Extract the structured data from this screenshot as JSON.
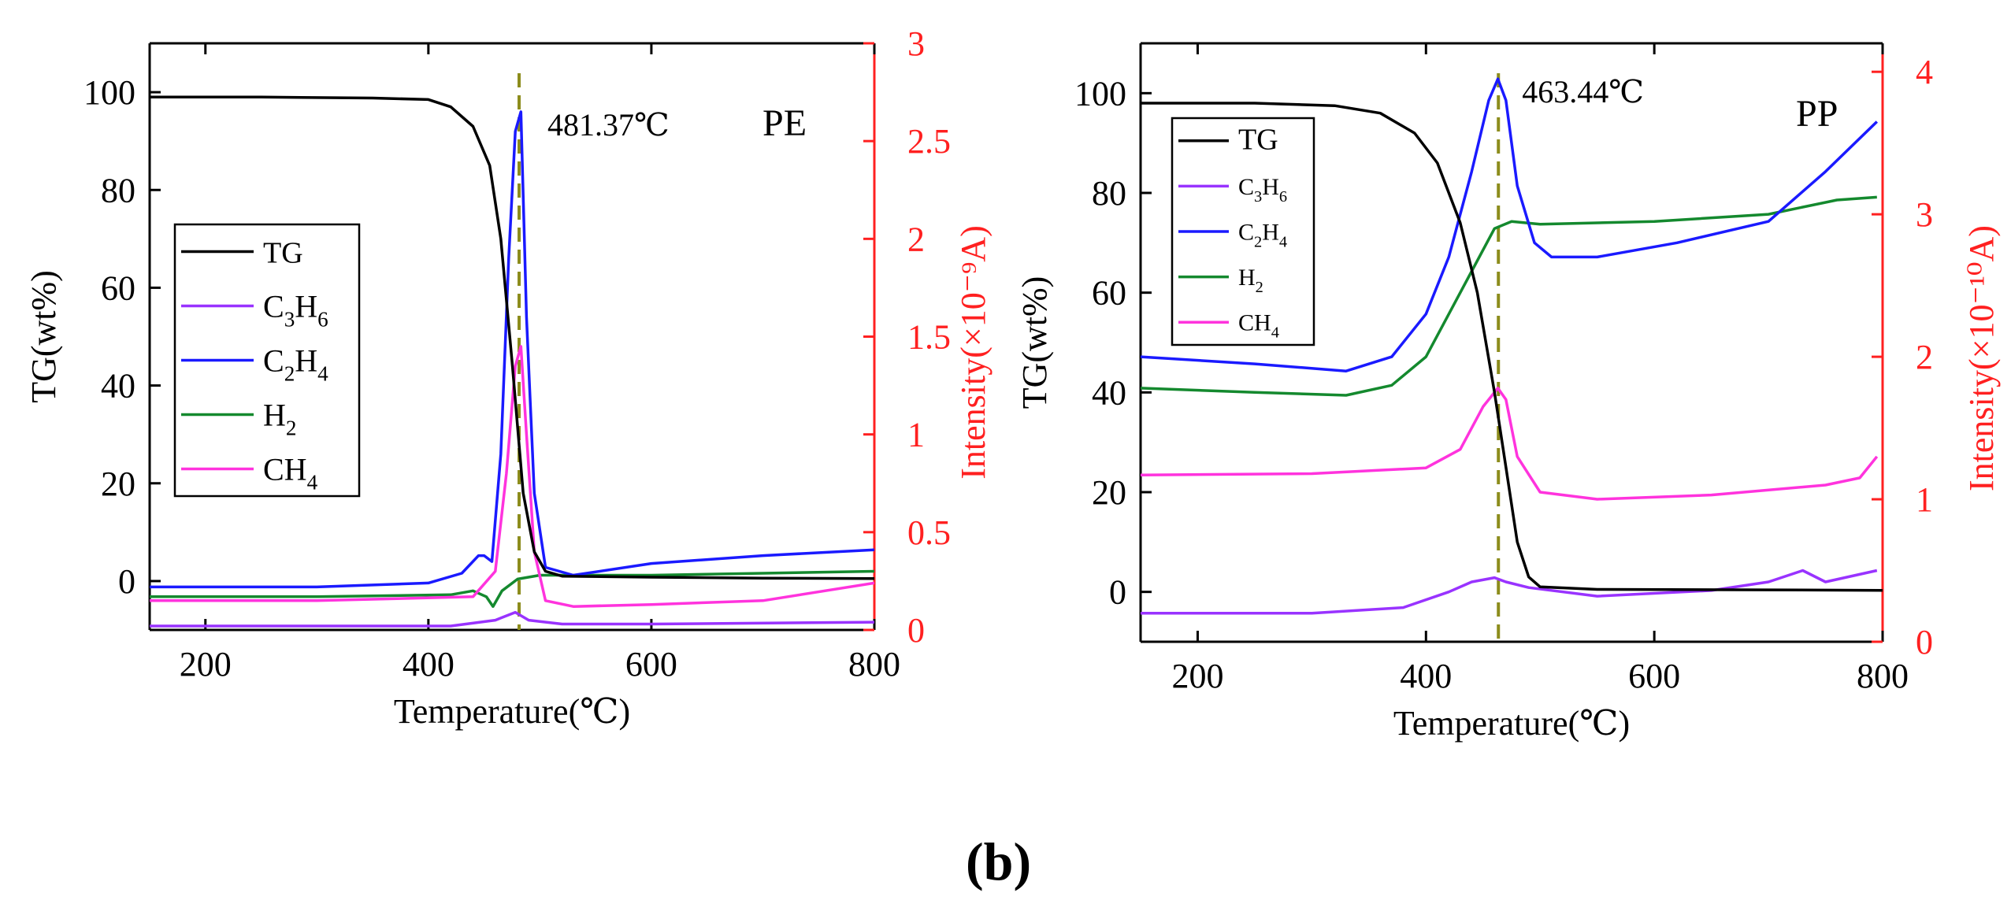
{
  "figure_label": "(b)",
  "colors": {
    "TG": "#000000",
    "C3H6": "#9933ff",
    "C2H4": "#1a1aff",
    "H2": "#14892e",
    "CH4": "#ff33dd",
    "marker": "#8c8c1c",
    "right_axis": "#ff2020"
  },
  "chart_data": [
    {
      "type": "line",
      "panel_label": "PE",
      "annotation": "481.37℃",
      "marker_x": 481.37,
      "xlabel": "Temperature(℃)",
      "ylabel": "TG(wt%)",
      "ylabel_right": "Intensity(×10⁻⁹A)",
      "xlim": [
        150,
        800
      ],
      "ylim": [
        -10,
        110
      ],
      "ylim_right": [
        0,
        3
      ],
      "xticks": [
        "200",
        "400",
        "600",
        "800"
      ],
      "yticks": [
        "0",
        "20",
        "40",
        "60",
        "80",
        "100"
      ],
      "yticks_right": [
        "0",
        "0.5",
        "1",
        "1.5",
        "2",
        "2.5",
        "3"
      ],
      "legend": [
        {
          "key": "TG",
          "label": "TG"
        },
        {
          "key": "C3H6",
          "label": "C3H6",
          "base": "C",
          "s1": "3",
          "mid": "H",
          "s2": "6"
        },
        {
          "key": "C2H4",
          "label": "C2H4",
          "base": "C",
          "s1": "2",
          "mid": "H",
          "s2": "4"
        },
        {
          "key": "H2",
          "label": "H2",
          "base": "H",
          "s1": "2"
        },
        {
          "key": "CH4",
          "label": "CH4",
          "base": "CH",
          "s1": "4"
        }
      ],
      "series": [
        {
          "key": "TG",
          "name": "TG",
          "axis": "left",
          "x": [
            150,
            250,
            350,
            400,
            420,
            440,
            455,
            465,
            475,
            485,
            495,
            505,
            520,
            600,
            700,
            800
          ],
          "y": [
            99,
            99,
            98.8,
            98.5,
            97,
            93,
            85,
            70,
            45,
            18,
            6,
            2,
            1,
            0.8,
            0.6,
            0.5
          ]
        },
        {
          "key": "C2H4",
          "name": "C2H4",
          "axis": "right",
          "x": [
            150,
            300,
            400,
            430,
            445,
            450,
            457,
            465,
            472,
            478,
            483,
            488,
            495,
            505,
            530,
            600,
            700,
            800
          ],
          "y": [
            0.22,
            0.22,
            0.24,
            0.29,
            0.38,
            0.38,
            0.35,
            0.9,
            1.9,
            2.55,
            2.65,
            1.6,
            0.7,
            0.32,
            0.28,
            0.34,
            0.38,
            0.41
          ]
        },
        {
          "key": "H2",
          "name": "H2",
          "axis": "right",
          "x": [
            150,
            300,
            420,
            440,
            452,
            458,
            466,
            480,
            500,
            600,
            700,
            800
          ],
          "y": [
            0.17,
            0.17,
            0.18,
            0.2,
            0.17,
            0.12,
            0.2,
            0.26,
            0.28,
            0.28,
            0.29,
            0.3
          ]
        },
        {
          "key": "CH4",
          "name": "CH4",
          "axis": "right",
          "x": [
            150,
            300,
            440,
            460,
            470,
            478,
            483,
            488,
            495,
            505,
            530,
            600,
            700,
            800
          ],
          "y": [
            0.15,
            0.15,
            0.17,
            0.3,
            0.8,
            1.35,
            1.45,
            1.0,
            0.4,
            0.15,
            0.12,
            0.13,
            0.15,
            0.24
          ]
        },
        {
          "key": "C3H6",
          "name": "C3H6",
          "axis": "right",
          "x": [
            150,
            420,
            460,
            478,
            490,
            520,
            600,
            800
          ],
          "y": [
            0.02,
            0.02,
            0.05,
            0.09,
            0.05,
            0.03,
            0.03,
            0.04
          ]
        }
      ]
    },
    {
      "type": "line",
      "panel_label": "PP",
      "annotation": "463.44℃",
      "marker_x": 463.44,
      "xlabel": "Temperature(℃)",
      "ylabel": "TG(wt%)",
      "ylabel_right": "Intensity(×10⁻¹⁰A)",
      "xlim": [
        150,
        800
      ],
      "ylim": [
        -10,
        110
      ],
      "ylim_right": [
        0,
        4.2
      ],
      "xticks": [
        "200",
        "400",
        "600",
        "800"
      ],
      "yticks": [
        "0",
        "20",
        "40",
        "60",
        "80",
        "100"
      ],
      "yticks_right": [
        "0",
        "1",
        "2",
        "3",
        "4"
      ],
      "legend": [
        {
          "key": "TG",
          "label": "TG"
        },
        {
          "key": "C3H6",
          "label": "C3H6",
          "base": "C",
          "s1": "3",
          "mid": "H",
          "s2": "6"
        },
        {
          "key": "C2H4",
          "label": "C2H4",
          "base": "C",
          "s1": "2",
          "mid": "H",
          "s2": "4"
        },
        {
          "key": "H2",
          "label": "H2",
          "base": "H",
          "s1": "2"
        },
        {
          "key": "CH4",
          "label": "CH4",
          "base": "CH",
          "s1": "4"
        }
      ],
      "series": [
        {
          "key": "TG",
          "name": "TG",
          "axis": "left",
          "x": [
            150,
            250,
            320,
            360,
            390,
            410,
            430,
            445,
            460,
            470,
            480,
            490,
            500,
            550,
            700,
            800
          ],
          "y": [
            98,
            98,
            97.5,
            96,
            92,
            86,
            74,
            60,
            40,
            25,
            10,
            3,
            1,
            0.5,
            0.4,
            0.3
          ]
        },
        {
          "key": "C2H4",
          "name": "C2H4",
          "axis": "right",
          "x": [
            150,
            250,
            330,
            370,
            400,
            420,
            440,
            455,
            463,
            470,
            480,
            495,
            510,
            550,
            620,
            700,
            750,
            795
          ],
          "y": [
            2.0,
            1.95,
            1.9,
            2.0,
            2.3,
            2.7,
            3.3,
            3.8,
            3.95,
            3.8,
            3.2,
            2.8,
            2.7,
            2.7,
            2.8,
            2.95,
            3.3,
            3.65
          ]
        },
        {
          "key": "H2",
          "name": "H2",
          "axis": "right",
          "x": [
            150,
            250,
            330,
            370,
            400,
            420,
            440,
            460,
            475,
            500,
            600,
            700,
            760,
            795
          ],
          "y": [
            1.78,
            1.75,
            1.73,
            1.8,
            2.0,
            2.3,
            2.6,
            2.9,
            2.95,
            2.93,
            2.95,
            3.0,
            3.1,
            3.12
          ]
        },
        {
          "key": "CH4",
          "name": "CH4",
          "axis": "right",
          "x": [
            150,
            300,
            400,
            430,
            450,
            463,
            470,
            480,
            500,
            550,
            650,
            750,
            780,
            795
          ],
          "y": [
            1.17,
            1.18,
            1.22,
            1.35,
            1.65,
            1.78,
            1.7,
            1.3,
            1.05,
            1.0,
            1.03,
            1.1,
            1.15,
            1.3
          ]
        },
        {
          "key": "C3H6",
          "name": "C3H6",
          "axis": "right",
          "x": [
            150,
            300,
            380,
            420,
            440,
            460,
            470,
            490,
            550,
            650,
            700,
            730,
            750,
            795
          ],
          "y": [
            0.2,
            0.2,
            0.24,
            0.35,
            0.42,
            0.45,
            0.42,
            0.38,
            0.32,
            0.36,
            0.42,
            0.5,
            0.42,
            0.5
          ]
        }
      ]
    }
  ]
}
